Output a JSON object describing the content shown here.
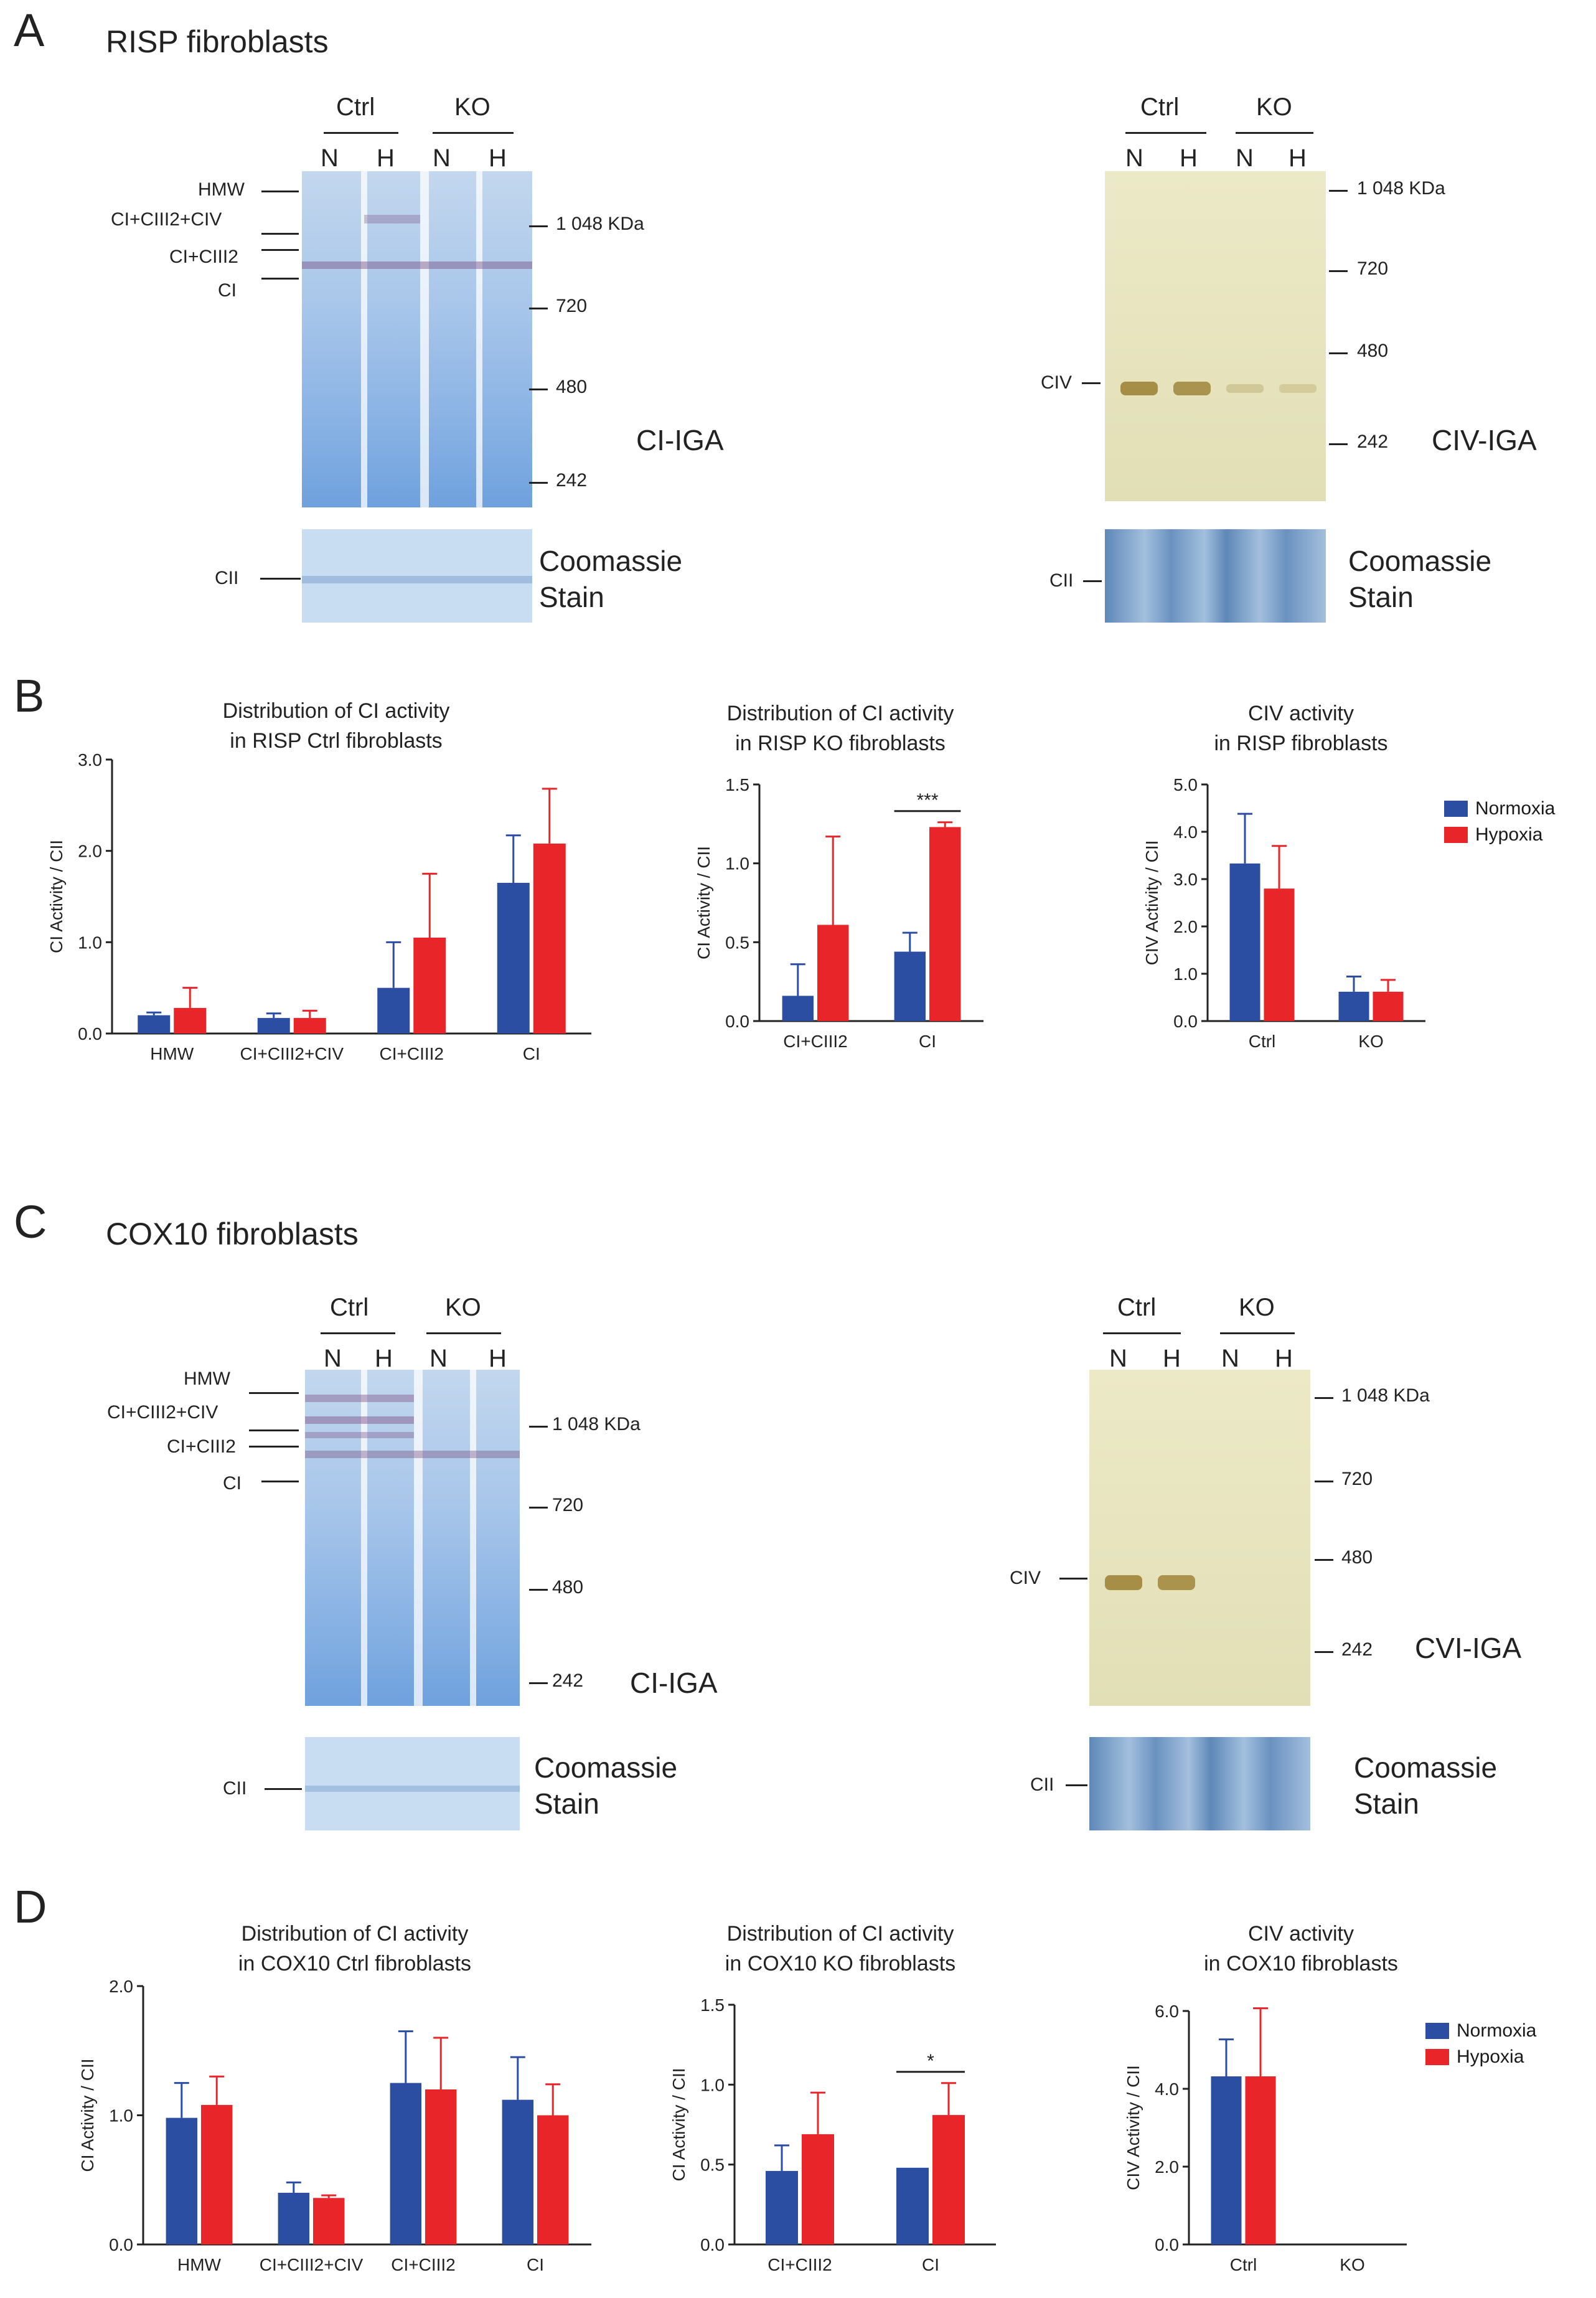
{
  "panels": {
    "A": {
      "letter": "A",
      "title": "RISP fibroblasts"
    },
    "B": {
      "letter": "B"
    },
    "C": {
      "letter": "C",
      "title": "COX10 fibroblasts"
    },
    "D": {
      "letter": "D"
    }
  },
  "gel_labels": {
    "ctrl": "Ctrl",
    "ko": "KO",
    "n": "N",
    "h": "H",
    "hmw": "HMW",
    "ci_ciii2_civ": "CI+CIII2+CIV",
    "ci_ciii2": "CI+CIII2",
    "ci": "CI",
    "cii": "CII",
    "civ": "CIV",
    "m1048": "1 048 KDa",
    "m720": "720",
    "m480": "480",
    "m242": "242",
    "ci_iga": "CI-IGA",
    "civ_iga": "CIV-IGA",
    "cvi_iga": "CVI-IGA",
    "coomassie": "Coomassie",
    "stain": "Stain"
  },
  "legend": {
    "normoxia": "Normoxia",
    "hypoxia": "Hypoxia"
  },
  "colors": {
    "normoxia": "#2b4ea2",
    "hypoxia": "#e8262a"
  },
  "chart_data": [
    {
      "id": "B1",
      "type": "bar",
      "title": "Distribution of CI activity",
      "subtitle": "in RISP Ctrl fibroblasts",
      "ylabel": "CI Activity / CII",
      "ylim": [
        0,
        3.0
      ],
      "yticks": [
        "0.0",
        "1.0",
        "2.0",
        "3.0"
      ],
      "ytick_values": [
        0,
        1,
        2,
        3
      ],
      "categories": [
        "HMW",
        "CI+CIII2+CIV",
        "CI+CIII2",
        "CI"
      ],
      "series": [
        {
          "name": "Normoxia",
          "values": [
            0.2,
            0.17,
            0.5,
            1.65
          ],
          "errors": [
            0.03,
            0.05,
            0.5,
            0.52
          ]
        },
        {
          "name": "Hypoxia",
          "values": [
            0.28,
            0.17,
            1.05,
            2.08
          ],
          "errors": [
            0.22,
            0.08,
            0.7,
            0.6
          ]
        }
      ],
      "annotations": []
    },
    {
      "id": "B2",
      "type": "bar",
      "title": "Distribution of CI activity",
      "subtitle": "in RISP KO fibroblasts",
      "ylabel": "CI Activity / CII",
      "ylim": [
        0,
        1.5
      ],
      "yticks": [
        "0.0",
        "0.5",
        "1.0",
        "1.5"
      ],
      "ytick_values": [
        0,
        0.5,
        1.0,
        1.5
      ],
      "categories": [
        "CI+CIII2",
        "CI"
      ],
      "series": [
        {
          "name": "Normoxia",
          "values": [
            0.16,
            0.44
          ],
          "errors": [
            0.2,
            0.12
          ]
        },
        {
          "name": "Hypoxia",
          "values": [
            0.61,
            1.23
          ],
          "errors": [
            0.56,
            0.03
          ]
        }
      ],
      "annotations": [
        {
          "category": 1,
          "text": "***"
        }
      ]
    },
    {
      "id": "B3",
      "type": "bar",
      "title": "CIV activity",
      "subtitle": "in RISP fibroblasts",
      "ylabel": "CIV Activity / CII",
      "ylim": [
        0,
        5.0
      ],
      "yticks": [
        "0.0",
        "1.0",
        "2.0",
        "3.0",
        "4.0",
        "5.0"
      ],
      "ytick_values": [
        0,
        1,
        2,
        3,
        4,
        5
      ],
      "categories": [
        "Ctrl",
        "KO"
      ],
      "series": [
        {
          "name": "Normoxia",
          "values": [
            3.33,
            0.62
          ],
          "errors": [
            1.05,
            0.32
          ]
        },
        {
          "name": "Hypoxia",
          "values": [
            2.8,
            0.62
          ],
          "errors": [
            0.9,
            0.25
          ]
        }
      ],
      "annotations": []
    },
    {
      "id": "D1",
      "type": "bar",
      "title": "Distribution of CI activity",
      "subtitle": "in COX10 Ctrl fibroblasts",
      "ylabel": "CI Activity / CII",
      "ylim": [
        0,
        2.0
      ],
      "yticks": [
        "0.0",
        "1.0",
        "2.0"
      ],
      "ytick_values": [
        0,
        1,
        2
      ],
      "categories": [
        "HMW",
        "CI+CIII2+CIV",
        "CI+CIII2",
        "CI"
      ],
      "series": [
        {
          "name": "Normoxia",
          "values": [
            0.98,
            0.4,
            1.25,
            1.12
          ],
          "errors": [
            0.27,
            0.08,
            0.4,
            0.33
          ]
        },
        {
          "name": "Hypoxia",
          "values": [
            1.08,
            0.36,
            1.2,
            1.0
          ],
          "errors": [
            0.22,
            0.02,
            0.4,
            0.24
          ]
        }
      ],
      "annotations": []
    },
    {
      "id": "D2",
      "type": "bar",
      "title": "Distribution of CI activity",
      "subtitle": "in COX10 KO fibroblasts",
      "ylabel": "CI Activity / CII",
      "ylim": [
        0,
        1.5
      ],
      "yticks": [
        "0.0",
        "0.5",
        "1.0",
        "1.5"
      ],
      "ytick_values": [
        0,
        0.5,
        1.0,
        1.5
      ],
      "categories": [
        "CI+CIII2",
        "CI"
      ],
      "series": [
        {
          "name": "Normoxia",
          "values": [
            0.46,
            0.48
          ],
          "errors": [
            0.16,
            0.0
          ]
        },
        {
          "name": "Hypoxia",
          "values": [
            0.69,
            0.81
          ],
          "errors": [
            0.26,
            0.2
          ]
        }
      ],
      "annotations": [
        {
          "category": 1,
          "text": "*"
        }
      ]
    },
    {
      "id": "D3",
      "type": "bar",
      "title": "CIV activity",
      "subtitle": "in COX10 fibroblasts",
      "ylabel": "CIV Activity / CII",
      "ylim": [
        0,
        6.0
      ],
      "yticks": [
        "0.0",
        "2.0",
        "4.0",
        "6.0"
      ],
      "ytick_values": [
        0,
        2,
        4,
        6
      ],
      "categories": [
        "Ctrl",
        "KO"
      ],
      "series": [
        {
          "name": "Normoxia",
          "values": [
            4.32,
            0
          ],
          "errors": [
            0.95,
            0
          ]
        },
        {
          "name": "Hypoxia",
          "values": [
            4.32,
            0
          ],
          "errors": [
            1.75,
            0
          ]
        }
      ],
      "annotations": []
    }
  ]
}
